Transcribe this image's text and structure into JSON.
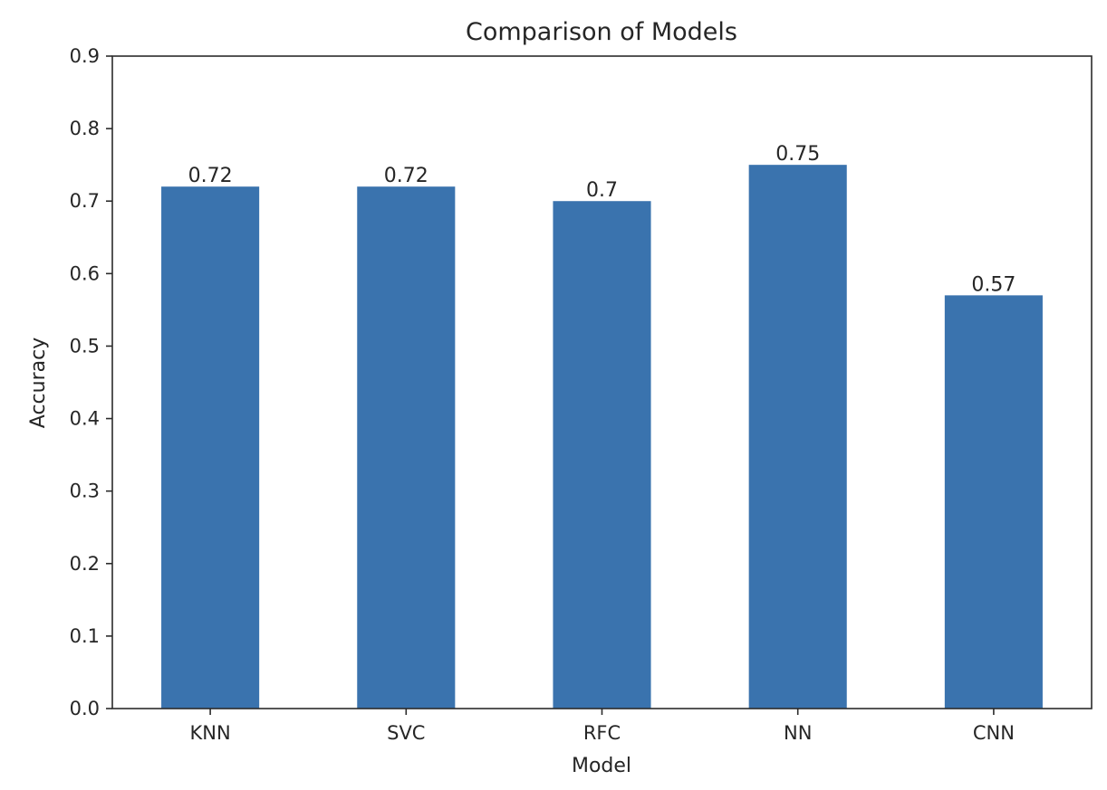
{
  "chart_data": {
    "type": "bar",
    "title": "Comparison of Models",
    "xlabel": "Model",
    "ylabel": "Accuracy",
    "categories": [
      "KNN",
      "SVC",
      "RFC",
      "NN",
      "CNN"
    ],
    "values": [
      0.72,
      0.72,
      0.7,
      0.75,
      0.57
    ],
    "data_labels": [
      "0.72",
      "0.72",
      "0.7",
      "0.75",
      "0.57"
    ],
    "ylim": [
      0,
      0.9
    ],
    "yticks": [
      0.0,
      0.1,
      0.2,
      0.3,
      0.4,
      0.5,
      0.6,
      0.7,
      0.8,
      0.9
    ],
    "ytick_labels": [
      "0.0",
      "0.1",
      "0.2",
      "0.3",
      "0.4",
      "0.5",
      "0.6",
      "0.7",
      "0.8",
      "0.9"
    ],
    "grid": false,
    "legend": "none",
    "bar_color": "#3a73ae"
  }
}
